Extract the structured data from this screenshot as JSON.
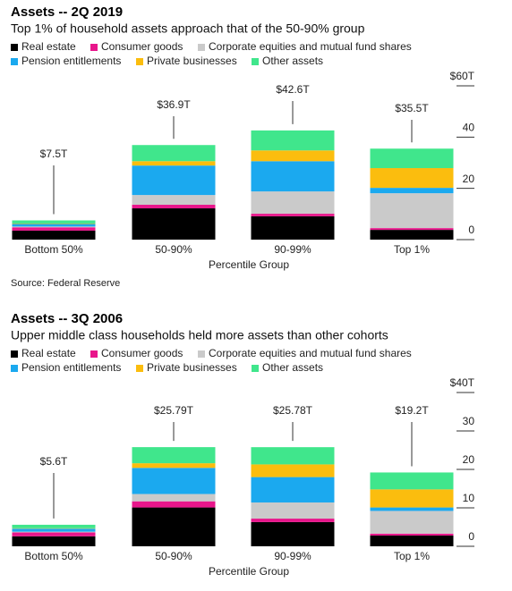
{
  "chart_data": [
    {
      "type": "stacked_bar",
      "title": "Assets -- 2Q 2019",
      "subtitle": "Top 1% of household assets approach that of the 50-90% group",
      "categories": [
        "Bottom 50%",
        "50-90%",
        "90-99%",
        "Top 1%"
      ],
      "series": [
        {
          "name": "Real estate",
          "color": "#000000",
          "values": [
            3.5,
            12.2,
            9.1,
            3.8
          ]
        },
        {
          "name": "Consumer goods",
          "color": "#e8168b",
          "values": [
            1.3,
            1.4,
            1.0,
            0.7
          ]
        },
        {
          "name": "Corporate equities and mutual fund shares",
          "color": "#cacaca",
          "values": [
            0.3,
            3.8,
            8.7,
            13.6
          ]
        },
        {
          "name": "Pension entitlements",
          "color": "#1ba9ef",
          "values": [
            1.0,
            11.5,
            11.8,
            2.1
          ]
        },
        {
          "name": "Private businesses",
          "color": "#fbbd0e",
          "values": [
            0.2,
            1.7,
            4.2,
            7.7
          ]
        },
        {
          "name": "Other assets",
          "color": "#40e68c",
          "values": [
            1.2,
            6.3,
            7.8,
            7.6
          ]
        }
      ],
      "annotations": [
        {
          "value": 7.5,
          "label": "$7.5T"
        },
        {
          "value": 36.9,
          "label": "$36.9T"
        },
        {
          "value": 42.6,
          "label": "$42.6T"
        },
        {
          "value": 35.5,
          "label": "$35.5T"
        }
      ],
      "ylim": [
        0,
        60
      ],
      "yticks": [
        0,
        20,
        40,
        {
          "value": 60,
          "label": "$60T"
        }
      ],
      "xlabel": "Percentile Group",
      "source": "Source: Federal Reserve"
    },
    {
      "type": "stacked_bar",
      "title": "Assets -- 3Q 2006",
      "subtitle": "Upper middle class households held more assets than other cohorts",
      "categories": [
        "Bottom 50%",
        "50-90%",
        "90-99%",
        "Top 1%"
      ],
      "series": [
        {
          "name": "Real estate",
          "color": "#000000",
          "values": [
            2.6,
            10.1,
            6.3,
            2.8
          ]
        },
        {
          "name": "Consumer goods",
          "color": "#e8168b",
          "values": [
            1.0,
            1.6,
            0.9,
            0.5
          ]
        },
        {
          "name": "Corporate equities and mutual fund shares",
          "color": "#cacaca",
          "values": [
            0.2,
            1.9,
            4.2,
            5.9
          ]
        },
        {
          "name": "Pension entitlements",
          "color": "#1ba9ef",
          "values": [
            0.8,
            6.8,
            6.6,
            0.9
          ]
        },
        {
          "name": "Private businesses",
          "color": "#fbbd0e",
          "values": [
            0.1,
            1.2,
            3.3,
            4.7
          ]
        },
        {
          "name": "Other assets",
          "color": "#40e68c",
          "values": [
            0.9,
            4.19,
            4.48,
            4.4
          ]
        }
      ],
      "annotations": [
        {
          "value": 5.6,
          "label": "$5.6T"
        },
        {
          "value": 25.79,
          "label": "$25.79T"
        },
        {
          "value": 25.78,
          "label": "$25.78T"
        },
        {
          "value": 19.2,
          "label": "$19.2T"
        }
      ],
      "ylim": [
        0,
        40
      ],
      "yticks": [
        0,
        10,
        20,
        30,
        {
          "value": 40,
          "label": "$40T"
        }
      ],
      "xlabel": "Percentile Group"
    }
  ]
}
